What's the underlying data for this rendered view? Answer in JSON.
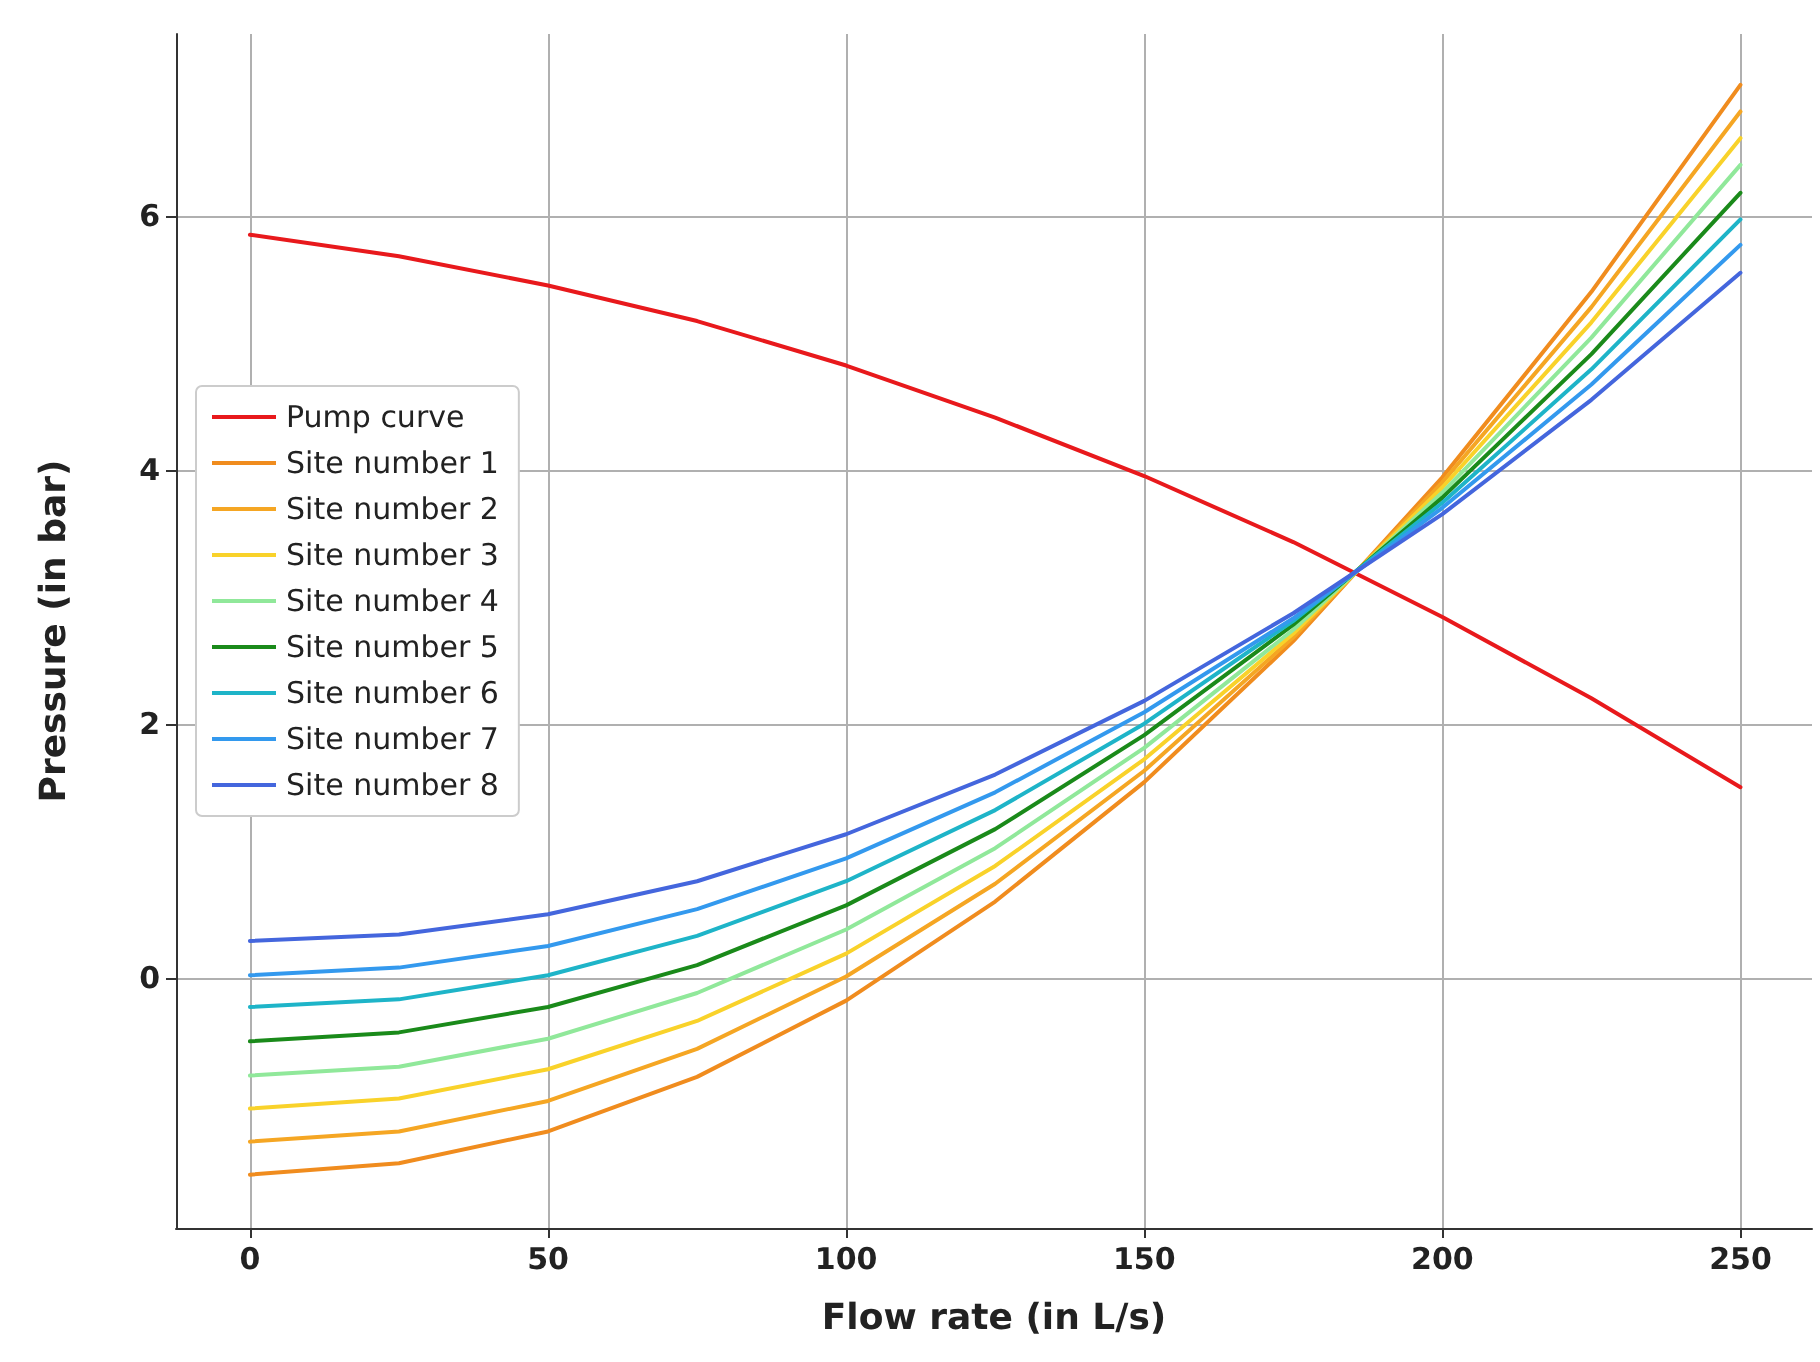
{
  "chart_data": {
    "type": "line",
    "xlabel": "Flow rate (in L/s)",
    "ylabel": "Pressure (in bar)",
    "x": [
      0,
      25,
      50,
      75,
      100,
      125,
      150,
      175,
      200,
      225,
      250
    ],
    "xlim": [
      -12.4,
      262
    ],
    "xticks": [
      0,
      50,
      100,
      150,
      200,
      250
    ],
    "ylim": [
      -1.97,
      7.43
    ],
    "yticks": [
      0,
      2,
      4,
      6
    ],
    "grid": true,
    "legend": "left",
    "marker": "none",
    "line_style": "solid",
    "series": [
      {
        "name": "Pump curve",
        "color": "#e8191c",
        "values": [
          5.85,
          5.68,
          5.45,
          5.17,
          4.82,
          4.41,
          3.95,
          3.43,
          2.84,
          2.2,
          1.5
        ]
      },
      {
        "name": "Site number 1",
        "color": "#f08c1e",
        "values": [
          -1.55,
          -1.46,
          -1.21,
          -0.78,
          -0.18,
          0.6,
          1.54,
          2.65,
          3.94,
          5.4,
          7.03
        ]
      },
      {
        "name": "Site number 2",
        "color": "#f5a623",
        "values": [
          -1.29,
          -1.21,
          -0.97,
          -0.56,
          0.01,
          0.74,
          1.63,
          2.68,
          3.9,
          5.28,
          6.82
        ]
      },
      {
        "name": "Site number 3",
        "color": "#f9d22a",
        "values": [
          -1.03,
          -0.95,
          -0.72,
          -0.34,
          0.19,
          0.88,
          1.72,
          2.71,
          3.86,
          5.16,
          6.61
        ]
      },
      {
        "name": "Site number 4",
        "color": "#90e89a",
        "values": [
          -0.77,
          -0.7,
          -0.48,
          -0.12,
          0.38,
          1.02,
          1.81,
          2.74,
          3.82,
          5.04,
          6.4
        ]
      },
      {
        "name": "Site number 5",
        "color": "#1a8a1a",
        "values": [
          -0.5,
          -0.43,
          -0.23,
          0.1,
          0.57,
          1.17,
          1.91,
          2.78,
          3.78,
          4.91,
          6.18
        ]
      },
      {
        "name": "Site number 6",
        "color": "#1eb4c8",
        "values": [
          -0.23,
          -0.17,
          0.02,
          0.33,
          0.76,
          1.32,
          2.0,
          2.81,
          3.74,
          4.79,
          5.97
        ]
      },
      {
        "name": "Site number 7",
        "color": "#3399ee",
        "values": [
          0.02,
          0.08,
          0.25,
          0.54,
          0.94,
          1.46,
          2.09,
          2.83,
          3.7,
          4.67,
          5.77
        ]
      },
      {
        "name": "Site number 8",
        "color": "#4466dd",
        "values": [
          0.29,
          0.34,
          0.5,
          0.76,
          1.13,
          1.6,
          2.18,
          2.87,
          3.65,
          4.55,
          5.55
        ]
      }
    ]
  }
}
